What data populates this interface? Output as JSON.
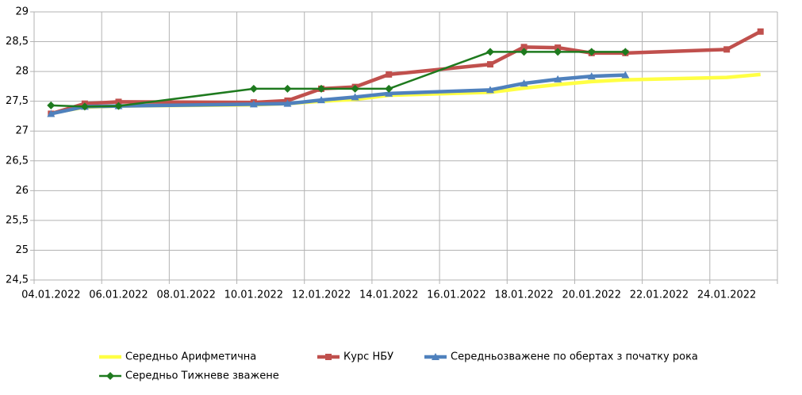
{
  "chart_data": {
    "type": "line",
    "x": [
      "04.01.2022",
      "05.01.2022",
      "06.01.2022",
      "10.01.2022",
      "11.01.2022",
      "12.01.2022",
      "13.01.2022",
      "14.01.2022",
      "17.01.2022",
      "18.01.2022",
      "19.01.2022",
      "20.01.2022",
      "21.01.2022",
      "24.01.2022",
      "25.01.2022"
    ],
    "xticks": [
      "04.01.2022",
      "06.01.2022",
      "08.01.2022",
      "10.01.2022",
      "12.01.2022",
      "14.01.2022",
      "16.01.2022",
      "18.01.2022",
      "20.01.2022",
      "22.01.2022",
      "24.01.2022"
    ],
    "ylim": [
      24.5,
      29
    ],
    "yticks": [
      {
        "value": 24.5,
        "label": "24,5"
      },
      25,
      {
        "value": 25.5,
        "label": "25,5"
      },
      26,
      {
        "value": 26.5,
        "label": "26,5"
      },
      27,
      {
        "value": 27.5,
        "label": "27,5"
      },
      28,
      {
        "value": 28.5,
        "label": "28,5"
      },
      29
    ],
    "grid": true,
    "legend": "bottom",
    "series": [
      {
        "name": "Середньо Арифметична",
        "color": "#ffff44",
        "marker": "none",
        "values": [
          27.3,
          27.4,
          27.42,
          27.44,
          27.46,
          27.5,
          27.53,
          27.6,
          27.65,
          27.72,
          27.78,
          27.83,
          27.86,
          27.9,
          27.95
        ]
      },
      {
        "name": "Курс НБУ",
        "color": "#c0504d",
        "marker": "square",
        "values": [
          27.29,
          27.46,
          27.49,
          27.48,
          27.51,
          27.71,
          27.74,
          27.95,
          28.12,
          28.41,
          28.4,
          28.31,
          28.31,
          28.37,
          28.67
        ]
      },
      {
        "name": "Середньозважене по обертах з початку рока",
        "color": "#4f81bd",
        "marker": "triangle",
        "values": [
          27.29,
          27.41,
          27.42,
          27.45,
          27.46,
          27.52,
          27.57,
          27.63,
          27.69,
          27.8,
          27.87,
          27.92,
          27.94,
          null,
          null
        ]
      },
      {
        "name": "Середньо Тижневе зважене",
        "color": "#1e7a1e",
        "marker": "diamond",
        "values": [
          27.43,
          27.41,
          27.42,
          27.71,
          27.71,
          27.71,
          27.71,
          27.71,
          28.33,
          28.33,
          28.33,
          28.33,
          28.33,
          null,
          null
        ]
      }
    ]
  }
}
